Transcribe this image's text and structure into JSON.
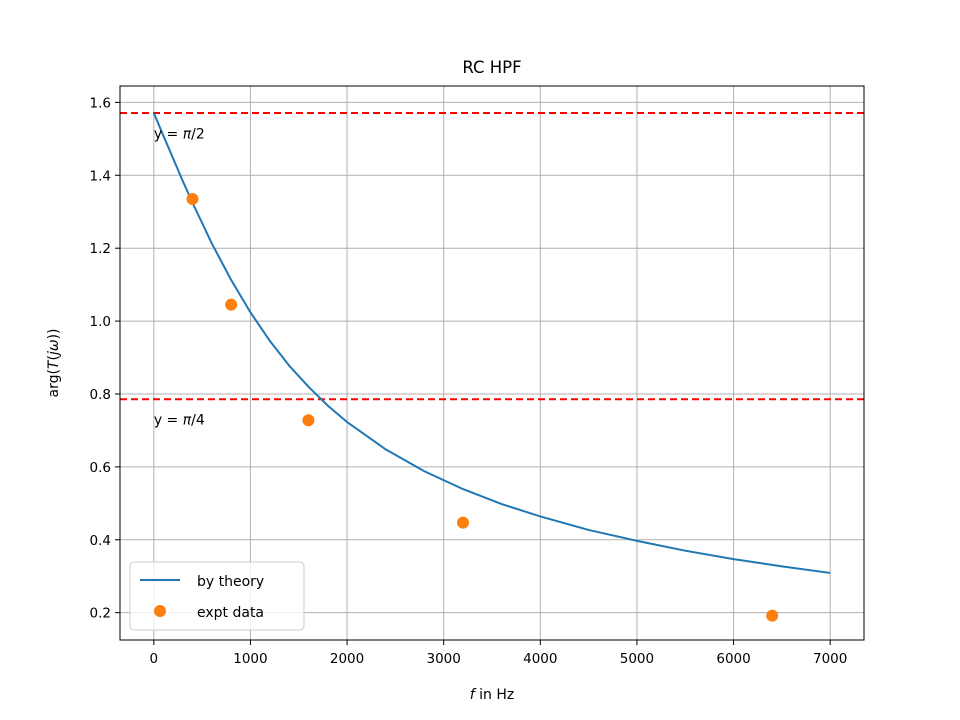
{
  "chart_data": {
    "type": "line",
    "title": "RC HPF",
    "xlabel": "f in Hz",
    "xlabel_parts": [
      "f",
      " in Hz"
    ],
    "ylabel": "arg(T(jω))",
    "ylabel_parts": [
      "arg(",
      "T",
      "(",
      "j",
      "ω",
      "))"
    ],
    "xlim": [
      -350,
      7350
    ],
    "ylim": [
      0.125,
      1.645
    ],
    "grid": true,
    "x_ticks": [
      0,
      1000,
      2000,
      3000,
      4000,
      5000,
      6000,
      7000
    ],
    "x_tick_labels": [
      "0",
      "1000",
      "2000",
      "3000",
      "4000",
      "5000",
      "6000",
      "7000"
    ],
    "y_ticks": [
      0.2,
      0.4,
      0.6,
      0.8,
      1.0,
      1.2,
      1.4,
      1.6
    ],
    "y_tick_labels": [
      "0.2",
      "0.4",
      "0.6",
      "0.8",
      "1.0",
      "1.2",
      "1.4",
      "1.6"
    ],
    "legend_position": "lower-left",
    "series": [
      {
        "name": "by theory",
        "kind": "line",
        "color": "#1f77b4",
        "x": [
          0,
          100,
          200,
          300,
          400,
          600,
          800,
          1000,
          1200,
          1400,
          1600,
          1800,
          2000,
          2400,
          2800,
          3200,
          3600,
          4000,
          4500,
          5000,
          5500,
          6000,
          6500,
          7000
        ],
        "y": [
          1.571,
          1.508,
          1.446,
          1.384,
          1.325,
          1.213,
          1.113,
          1.024,
          0.946,
          0.878,
          0.82,
          0.768,
          0.723,
          0.648,
          0.588,
          0.539,
          0.498,
          0.464,
          0.427,
          0.397,
          0.37,
          0.347,
          0.327,
          0.309
        ]
      },
      {
        "name": "expt data",
        "kind": "scatter",
        "color": "#ff7f0e",
        "x": [
          400,
          800,
          1600,
          3200,
          6400
        ],
        "y": [
          1.335,
          1.045,
          0.728,
          0.447,
          0.192
        ]
      }
    ],
    "hlines": [
      {
        "y": 1.5708,
        "color": "#ff0000",
        "label": "y = π/2",
        "label_parts": [
          "y = ",
          "π",
          "/2"
        ],
        "label_x": 0,
        "label_y": 1.515
      },
      {
        "y": 0.7854,
        "color": "#ff0000",
        "label": "y = π/4",
        "label_parts": [
          "y = ",
          "π",
          "/4"
        ],
        "label_x": 0,
        "label_y": 0.73
      }
    ]
  }
}
